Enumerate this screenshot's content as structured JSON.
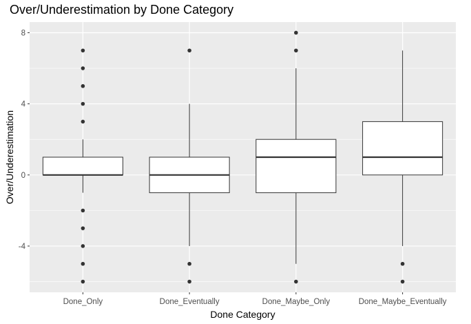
{
  "chart_data": {
    "type": "box",
    "title": "Over/Underestimation by Done Category",
    "xlabel": "Done Category",
    "ylabel": "Over/Underestimation",
    "ylim": [
      -6.6,
      8.6
    ],
    "yticks": [
      -4,
      0,
      4,
      8
    ],
    "grid": true,
    "categories": [
      "Done_Only",
      "Done_Eventually",
      "Done_Maybe_Only",
      "Done_Maybe_Eventually"
    ],
    "boxes": [
      {
        "category": "Done_Only",
        "whisker_low": -1,
        "q1": 0,
        "median": 0,
        "q3": 1,
        "whisker_high": 2,
        "outliers": [
          7,
          6,
          5,
          4,
          3,
          -2,
          -3,
          -4,
          -5,
          -6
        ]
      },
      {
        "category": "Done_Eventually",
        "whisker_low": -4,
        "q1": -1,
        "median": 0,
        "q3": 1,
        "whisker_high": 4,
        "outliers": [
          7,
          -5,
          -6
        ]
      },
      {
        "category": "Done_Maybe_Only",
        "whisker_low": -5,
        "q1": -1,
        "median": 1,
        "q3": 2,
        "whisker_high": 6,
        "outliers": [
          8,
          7,
          -6
        ]
      },
      {
        "category": "Done_Maybe_Eventually",
        "whisker_low": -4,
        "q1": 0,
        "median": 1,
        "q3": 3,
        "whisker_high": 7,
        "outliers": [
          -5,
          -6
        ]
      }
    ]
  },
  "colors": {
    "panel": "#ebebeb",
    "grid_major": "#ffffff",
    "box_fill": "#ffffff",
    "line": "#333333",
    "point": "#333333"
  }
}
